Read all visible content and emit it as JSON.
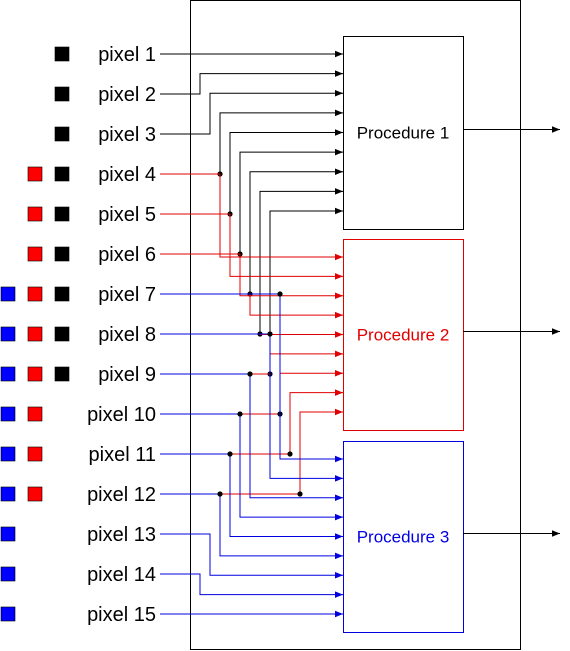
{
  "pixels": [
    {
      "label": "pixel 1",
      "markers": [
        "black"
      ]
    },
    {
      "label": "pixel 2",
      "markers": [
        "black"
      ]
    },
    {
      "label": "pixel 3",
      "markers": [
        "black"
      ]
    },
    {
      "label": "pixel 4",
      "markers": [
        "red",
        "black"
      ]
    },
    {
      "label": "pixel 5",
      "markers": [
        "red",
        "black"
      ]
    },
    {
      "label": "pixel 6",
      "markers": [
        "red",
        "black"
      ]
    },
    {
      "label": "pixel 7",
      "markers": [
        "blue",
        "red",
        "black"
      ]
    },
    {
      "label": "pixel 8",
      "markers": [
        "blue",
        "red",
        "black"
      ]
    },
    {
      "label": "pixel 9",
      "markers": [
        "blue",
        "red",
        "black"
      ]
    },
    {
      "label": "pixel 10",
      "markers": [
        "blue",
        "red"
      ]
    },
    {
      "label": "pixel 11",
      "markers": [
        "blue",
        "red"
      ]
    },
    {
      "label": "pixel 12",
      "markers": [
        "blue",
        "red"
      ]
    },
    {
      "label": "pixel 13",
      "markers": [
        "blue"
      ]
    },
    {
      "label": "pixel 14",
      "markers": [
        "blue"
      ]
    },
    {
      "label": "pixel 15",
      "markers": [
        "blue"
      ]
    }
  ],
  "procedures": [
    {
      "label": "Procedure 1",
      "color": "#000000",
      "inputs": [
        "pixel 1",
        "pixel 2",
        "pixel 3",
        "pixel 4",
        "pixel 5",
        "pixel 6",
        "pixel 7",
        "pixel 8",
        "pixel 9"
      ]
    },
    {
      "label": "Procedure 2",
      "color": "#e00000",
      "inputs": [
        "pixel 4",
        "pixel 5",
        "pixel 6",
        "pixel 7",
        "pixel 8",
        "pixel 9",
        "pixel 10",
        "pixel 11",
        "pixel 12"
      ]
    },
    {
      "label": "Procedure 3",
      "color": "#0000e0",
      "inputs": [
        "pixel 7",
        "pixel 8",
        "pixel 9",
        "pixel 10",
        "pixel 11",
        "pixel 12",
        "pixel 13",
        "pixel 14",
        "pixel 15"
      ]
    }
  ],
  "marker_colors": {
    "black": "#000000",
    "red": "#ff0000",
    "blue": "#0000ff"
  }
}
